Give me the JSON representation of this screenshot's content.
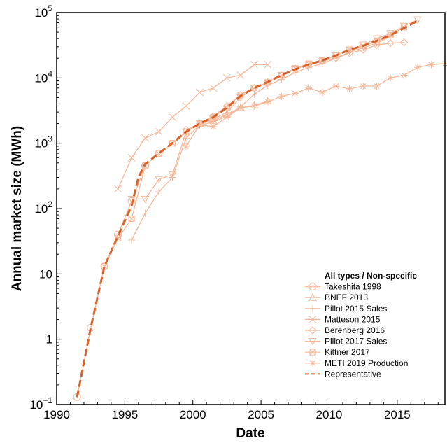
{
  "chart_data": {
    "type": "line",
    "xlabel": "Date",
    "ylabel": "Annual market size (MWh)",
    "y_scale": "log",
    "xlim": [
      1990,
      2018.5
    ],
    "ylim": [
      0.1,
      100000
    ],
    "x_ticks": [
      1990,
      1995,
      2000,
      2005,
      2010,
      2015
    ],
    "y_ticks": [
      {
        "value": 0.1,
        "base": "10",
        "exp": "−1"
      },
      {
        "value": 1,
        "label": "1"
      },
      {
        "value": 10,
        "label": "10"
      },
      {
        "value": 100,
        "base": "10",
        "exp": "2"
      },
      {
        "value": 1000,
        "base": "10",
        "exp": "3"
      },
      {
        "value": 10000,
        "base": "10",
        "exp": "4"
      },
      {
        "value": 100000,
        "base": "10",
        "exp": "5"
      }
    ],
    "legend_title": "All types / Non-specific",
    "legend_position": "lower-right",
    "colors": {
      "series": "#f4b89a",
      "representative": "#d9622b"
    },
    "series": [
      {
        "name": "Takeshita 1998",
        "marker": "circle",
        "x": [
          1991.5,
          1992.5,
          1993.5,
          1994.5,
          1995.5,
          1996.5,
          1997.5
        ],
        "y": [
          0.13,
          1.5,
          13,
          40,
          130,
          450,
          700
        ]
      },
      {
        "name": "BNEF 2013",
        "marker": "triangle",
        "x": [
          2000.5,
          2001.5,
          2002.5,
          2003.5,
          2004.5,
          2005.5
        ],
        "y": [
          2000,
          2200,
          2800,
          3500,
          3800,
          4400
        ]
      },
      {
        "name": "Pillot 2015 Sales",
        "marker": "plus",
        "x": [
          1995.5,
          1996.5,
          1997.5,
          1998.5,
          1999.5,
          2000.5,
          2001.5,
          2002.5,
          2003.5,
          2004.5,
          2005.5,
          2006.5,
          2007.5,
          2008.5,
          2009.5,
          2010.5,
          2011.5,
          2012.5,
          2013.5,
          2014.5,
          2015.5
        ],
        "y": [
          33,
          85,
          180,
          300,
          1200,
          1900,
          2100,
          2600,
          3600,
          5600,
          7700,
          9500,
          12000,
          14500,
          16500,
          20000,
          25000,
          29000,
          34000,
          43000,
          62000
        ]
      },
      {
        "name": "Matteson 2015",
        "marker": "x",
        "x": [
          1994.5,
          1995.5,
          1996.5,
          1997.5,
          1998.5,
          1999.5,
          2000.5,
          2001.5,
          2002.5,
          2003.5,
          2004.5,
          2005.5
        ],
        "y": [
          200,
          600,
          1200,
          1500,
          2500,
          3700,
          6000,
          7000,
          10000,
          11000,
          16000,
          16000
        ]
      },
      {
        "name": "Berenberg 2016",
        "marker": "diamond",
        "x": [
          1999.5,
          2000.5,
          2001.5,
          2002.5,
          2003.5,
          2004.5,
          2005.5,
          2006.5,
          2007.5,
          2008.5,
          2009.5,
          2010.5,
          2011.5,
          2012.5,
          2013.5,
          2014.5,
          2015.5
        ],
        "y": [
          1600,
          2000,
          2600,
          3700,
          5500,
          7000,
          8600,
          11000,
          14000,
          16000,
          18000,
          20000,
          24000,
          27000,
          32000,
          34000,
          35000
        ]
      },
      {
        "name": "Pillot 2017 Sales",
        "marker": "triangle-down",
        "x": [
          1995.5,
          1996.5,
          1997.5,
          1998.5,
          1999.5,
          2000.5,
          2001.5,
          2002.5,
          2003.5,
          2004.5,
          2005.5,
          2006.5,
          2007.5,
          2008.5,
          2009.5,
          2010.5,
          2011.5,
          2012.5,
          2013.5,
          2014.5,
          2015.5,
          2016.5
        ],
        "y": [
          140,
          140,
          280,
          330,
          1500,
          2000,
          2300,
          3000,
          5000,
          7000,
          8500,
          11000,
          13500,
          16000,
          18000,
          22000,
          27000,
          32000,
          40000,
          48000,
          62000,
          78000
        ]
      },
      {
        "name": "Kittner 2017",
        "marker": "x-square",
        "x": [
          1993.5,
          1994.5,
          1995.5,
          1996.5,
          1997.5,
          1998.5,
          1999.5,
          2000.5,
          2001.5,
          2002.5,
          2003.5,
          2004.5,
          2005.5,
          2006.5,
          2007.5,
          2008.5,
          2009.5,
          2010.5,
          2011.5,
          2012.5,
          2013.5,
          2014.5,
          2015.5
        ],
        "y": [
          13,
          35,
          70,
          450,
          700,
          1000,
          1500,
          2000,
          2500,
          3500,
          5500,
          7000,
          8500,
          11000,
          14000,
          16500,
          18500,
          22000,
          27000,
          31000,
          36000,
          45000,
          60000
        ]
      },
      {
        "name": "METI 2019 Production",
        "marker": "asterisk",
        "x": [
          1999.5,
          2000.5,
          2001.5,
          2002.5,
          2003.5,
          2004.5,
          2005.5,
          2006.5,
          2007.5,
          2008.5,
          2009.5,
          2010.5,
          2011.5,
          2012.5,
          2013.5,
          2014.5,
          2015.5,
          2016.5,
          2017.5,
          2018.5
        ],
        "y": [
          900,
          1900,
          1800,
          2500,
          3500,
          3700,
          4300,
          5200,
          5800,
          7000,
          6000,
          7500,
          6800,
          7500,
          7500,
          10000,
          11000,
          14500,
          16000,
          16500
        ]
      },
      {
        "name": "Representative",
        "marker": "none",
        "dashed": true,
        "x": [
          1991.5,
          1992.5,
          1993.5,
          1994.5,
          1995.5,
          1996,
          1996.5,
          1997.5,
          1998.5,
          1999.5,
          2000.5,
          2001.5,
          2002.5,
          2003.5,
          2004.5,
          2005.5,
          2006.5,
          2007.5,
          2008.5,
          2009.5,
          2010.5,
          2011.5,
          2012.5,
          2013.5,
          2014.5,
          2015.5,
          2016.5
        ],
        "y": [
          0.13,
          1.5,
          13,
          38,
          110,
          300,
          480,
          700,
          1000,
          1500,
          2000,
          2500,
          3500,
          5300,
          7000,
          8700,
          11000,
          13500,
          16000,
          18500,
          22000,
          27000,
          31000,
          37000,
          45000,
          58000,
          75000
        ]
      }
    ]
  }
}
